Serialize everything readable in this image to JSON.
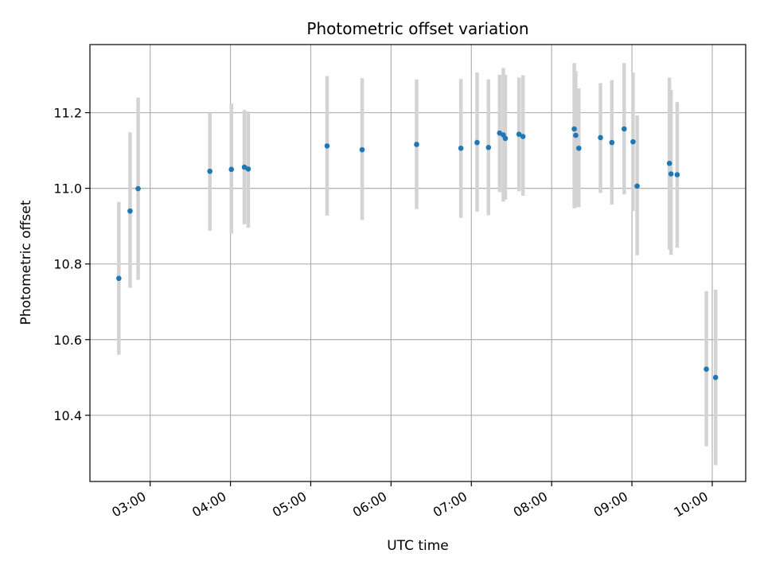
{
  "chart_data": {
    "type": "scatter",
    "title": "Photometric offset variation",
    "xlabel": "UTC time",
    "ylabel": "Photometric offset",
    "x_unit": "minutes after 00:00 UTC",
    "xlim": [
      135,
      625
    ],
    "ylim": [
      10.225,
      11.38
    ],
    "x_ticks": [
      180,
      240,
      300,
      360,
      420,
      480,
      540,
      600
    ],
    "x_tick_labels": [
      "03:00",
      "04:00",
      "05:00",
      "06:00",
      "07:00",
      "08:00",
      "09:00",
      "10:00"
    ],
    "y_ticks": [
      10.4,
      10.6,
      10.8,
      11.0,
      11.2
    ],
    "y_tick_labels": [
      "10.4",
      "10.6",
      "10.8",
      "11.0",
      "11.2"
    ],
    "grid": true,
    "colors": {
      "point": "#1f77b4",
      "errorbar": "#d3d3d3",
      "grid": "#b0b0b0"
    },
    "points": [
      {
        "x": 156.6,
        "y": 10.762,
        "lo": 10.56,
        "hi": 10.964
      },
      {
        "x": 165.0,
        "y": 10.94,
        "lo": 10.737,
        "hi": 11.148
      },
      {
        "x": 171.0,
        "y": 10.999,
        "lo": 10.758,
        "hi": 11.24
      },
      {
        "x": 224.6,
        "y": 11.045,
        "lo": 10.888,
        "hi": 11.2
      },
      {
        "x": 240.7,
        "y": 11.05,
        "lo": 10.88,
        "hi": 11.224
      },
      {
        "x": 250.4,
        "y": 11.056,
        "lo": 10.905,
        "hi": 11.207
      },
      {
        "x": 253.3,
        "y": 11.051,
        "lo": 10.896,
        "hi": 11.203
      },
      {
        "x": 312.2,
        "y": 11.112,
        "lo": 10.928,
        "hi": 11.297
      },
      {
        "x": 338.4,
        "y": 11.102,
        "lo": 10.916,
        "hi": 11.291
      },
      {
        "x": 379.1,
        "y": 11.116,
        "lo": 10.945,
        "hi": 11.288
      },
      {
        "x": 412.2,
        "y": 11.106,
        "lo": 10.922,
        "hi": 11.289
      },
      {
        "x": 424.3,
        "y": 11.121,
        "lo": 10.938,
        "hi": 11.306
      },
      {
        "x": 432.8,
        "y": 11.108,
        "lo": 10.929,
        "hi": 11.288
      },
      {
        "x": 441.1,
        "y": 11.146,
        "lo": 10.99,
        "hi": 11.3
      },
      {
        "x": 443.9,
        "y": 11.141,
        "lo": 10.965,
        "hi": 11.318
      },
      {
        "x": 445.4,
        "y": 11.132,
        "lo": 10.97,
        "hi": 11.3
      },
      {
        "x": 455.6,
        "y": 11.143,
        "lo": 10.992,
        "hi": 11.293
      },
      {
        "x": 458.6,
        "y": 11.137,
        "lo": 10.98,
        "hi": 11.299
      },
      {
        "x": 496.9,
        "y": 11.157,
        "lo": 10.947,
        "hi": 11.331
      },
      {
        "x": 498.0,
        "y": 11.14,
        "lo": 10.95,
        "hi": 11.31
      },
      {
        "x": 500.3,
        "y": 11.106,
        "lo": 10.95,
        "hi": 11.264
      },
      {
        "x": 516.5,
        "y": 11.134,
        "lo": 10.988,
        "hi": 11.278
      },
      {
        "x": 525.0,
        "y": 11.121,
        "lo": 10.957,
        "hi": 11.286
      },
      {
        "x": 534.2,
        "y": 11.157,
        "lo": 10.984,
        "hi": 11.331
      },
      {
        "x": 540.8,
        "y": 11.123,
        "lo": 10.94,
        "hi": 11.306
      },
      {
        "x": 543.9,
        "y": 11.006,
        "lo": 10.823,
        "hi": 11.193
      },
      {
        "x": 568.0,
        "y": 11.066,
        "lo": 10.838,
        "hi": 11.293
      },
      {
        "x": 569.2,
        "y": 11.038,
        "lo": 10.824,
        "hi": 11.26
      },
      {
        "x": 573.8,
        "y": 11.036,
        "lo": 10.843,
        "hi": 11.228
      },
      {
        "x": 595.6,
        "y": 10.522,
        "lo": 10.318,
        "hi": 10.728
      },
      {
        "x": 602.5,
        "y": 10.5,
        "lo": 10.268,
        "hi": 10.732
      }
    ]
  }
}
